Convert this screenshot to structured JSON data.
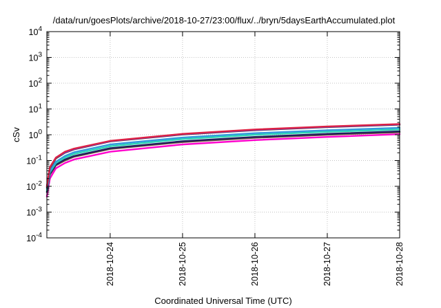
{
  "chart_data": {
    "type": "line",
    "title": "/data/run/goesPlots/archive/2018-10-27/23:00/flux/../bryn/5daysEarthAccumulated.plot",
    "xlabel": "Coordinated Universal Time (UTC)",
    "ylabel": "cSv",
    "x_range": [
      "2018-10-23 03:00",
      "2018-10-28 00:00"
    ],
    "x_ticks": [
      "2018-10-24",
      "2018-10-25",
      "2018-10-26",
      "2018-10-27",
      "2018-10-28"
    ],
    "y_scale": "log",
    "ylim": [
      0.0001,
      10000
    ],
    "y_ticks": [
      {
        "value": 0.0001,
        "base": "10",
        "exp": "-4"
      },
      {
        "value": 0.001,
        "base": "10",
        "exp": "-3"
      },
      {
        "value": 0.01,
        "base": "10",
        "exp": "-2"
      },
      {
        "value": 0.1,
        "base": "10",
        "exp": "-1"
      },
      {
        "value": 1,
        "base": "10",
        "exp": "0"
      },
      {
        "value": 10,
        "base": "10",
        "exp": "1"
      },
      {
        "value": 100,
        "base": "10",
        "exp": "2"
      },
      {
        "value": 1000,
        "base": "10",
        "exp": "3"
      },
      {
        "value": 10000,
        "base": "10",
        "exp": "4"
      }
    ],
    "grid": true,
    "legend": "none",
    "series": [
      {
        "color": "#ff00cc",
        "values": [
          [
            "2018-10-23 03:00",
            0.004
          ],
          [
            "2018-10-23 04:00",
            0.02
          ],
          [
            "2018-10-23 06:00",
            0.05
          ],
          [
            "2018-10-23 09:00",
            0.08
          ],
          [
            "2018-10-23 12:00",
            0.11
          ],
          [
            "2018-10-24 00:00",
            0.22
          ],
          [
            "2018-10-25 00:00",
            0.42
          ],
          [
            "2018-10-26 00:00",
            0.62
          ],
          [
            "2018-10-27 00:00",
            0.82
          ],
          [
            "2018-10-28 00:00",
            1.05
          ]
        ]
      },
      {
        "color": "#6e4a3a",
        "values": [
          [
            "2018-10-23 03:00",
            0.006
          ],
          [
            "2018-10-23 04:00",
            0.028
          ],
          [
            "2018-10-23 06:00",
            0.065
          ],
          [
            "2018-10-23 09:00",
            0.1
          ],
          [
            "2018-10-23 12:00",
            0.14
          ],
          [
            "2018-10-24 00:00",
            0.28
          ],
          [
            "2018-10-25 00:00",
            0.52
          ],
          [
            "2018-10-26 00:00",
            0.76
          ],
          [
            "2018-10-27 00:00",
            1.0
          ],
          [
            "2018-10-28 00:00",
            1.25
          ]
        ]
      },
      {
        "color": "#1f1f5e",
        "values": [
          [
            "2018-10-23 03:00",
            0.006
          ],
          [
            "2018-10-23 04:00",
            0.03
          ],
          [
            "2018-10-23 06:00",
            0.07
          ],
          [
            "2018-10-23 09:00",
            0.11
          ],
          [
            "2018-10-23 12:00",
            0.15
          ],
          [
            "2018-10-24 00:00",
            0.3
          ],
          [
            "2018-10-25 00:00",
            0.56
          ],
          [
            "2018-10-26 00:00",
            0.82
          ],
          [
            "2018-10-27 00:00",
            1.08
          ],
          [
            "2018-10-28 00:00",
            1.35
          ]
        ]
      },
      {
        "color": "#2bd6b4",
        "values": [
          [
            "2018-10-23 03:00",
            0.007
          ],
          [
            "2018-10-23 04:00",
            0.035
          ],
          [
            "2018-10-23 06:00",
            0.08
          ],
          [
            "2018-10-23 09:00",
            0.13
          ],
          [
            "2018-10-23 12:00",
            0.18
          ],
          [
            "2018-10-24 00:00",
            0.36
          ],
          [
            "2018-10-25 00:00",
            0.68
          ],
          [
            "2018-10-26 00:00",
            1.0
          ],
          [
            "2018-10-27 00:00",
            1.3
          ],
          [
            "2018-10-28 00:00",
            1.6
          ]
        ]
      },
      {
        "color": "#3399dd",
        "values": [
          [
            "2018-10-23 03:00",
            0.008
          ],
          [
            "2018-10-23 04:00",
            0.04
          ],
          [
            "2018-10-23 06:00",
            0.09
          ],
          [
            "2018-10-23 09:00",
            0.15
          ],
          [
            "2018-10-23 12:00",
            0.21
          ],
          [
            "2018-10-24 00:00",
            0.42
          ],
          [
            "2018-10-25 00:00",
            0.78
          ],
          [
            "2018-10-26 00:00",
            1.15
          ],
          [
            "2018-10-27 00:00",
            1.5
          ],
          [
            "2018-10-28 00:00",
            1.85
          ]
        ]
      },
      {
        "color": "#444444",
        "values": [
          [
            "2018-10-23 03:00",
            0.009
          ],
          [
            "2018-10-23 04:00",
            0.05
          ],
          [
            "2018-10-23 06:00",
            0.12
          ],
          [
            "2018-10-23 09:00",
            0.2
          ],
          [
            "2018-10-23 12:00",
            0.27
          ],
          [
            "2018-10-24 00:00",
            0.55
          ],
          [
            "2018-10-25 00:00",
            1.02
          ],
          [
            "2018-10-26 00:00",
            1.5
          ],
          [
            "2018-10-27 00:00",
            1.98
          ],
          [
            "2018-10-28 00:00",
            2.45
          ]
        ]
      },
      {
        "color": "#8a2be2",
        "values": [
          [
            "2018-10-23 03:00",
            0.01
          ],
          [
            "2018-10-23 04:00",
            0.055
          ],
          [
            "2018-10-23 06:00",
            0.13
          ],
          [
            "2018-10-23 09:00",
            0.21
          ],
          [
            "2018-10-23 12:00",
            0.28
          ],
          [
            "2018-10-24 00:00",
            0.57
          ],
          [
            "2018-10-25 00:00",
            1.06
          ],
          [
            "2018-10-26 00:00",
            1.56
          ],
          [
            "2018-10-27 00:00",
            2.05
          ],
          [
            "2018-10-28 00:00",
            2.55
          ]
        ]
      },
      {
        "color": "#dd2244",
        "values": [
          [
            "2018-10-23 03:00",
            0.01
          ],
          [
            "2018-10-23 04:00",
            0.055
          ],
          [
            "2018-10-23 06:00",
            0.13
          ],
          [
            "2018-10-23 09:00",
            0.22
          ],
          [
            "2018-10-23 12:00",
            0.29
          ],
          [
            "2018-10-24 00:00",
            0.58
          ],
          [
            "2018-10-25 00:00",
            1.08
          ],
          [
            "2018-10-26 00:00",
            1.6
          ],
          [
            "2018-10-27 00:00",
            2.1
          ],
          [
            "2018-10-28 00:00",
            2.6
          ]
        ]
      }
    ]
  }
}
